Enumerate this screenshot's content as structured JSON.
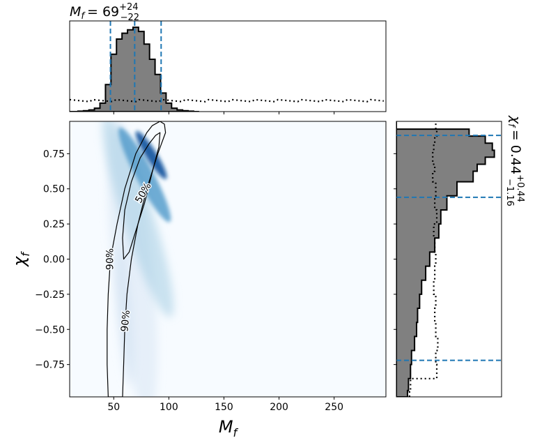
{
  "chart_data": [
    {
      "panel": "top-marginal",
      "type": "area",
      "title": "M_f = 69 (+24, -22)",
      "title_parts": {
        "symbol": "M",
        "sub": "f",
        "median": "= 69",
        "plus": "+24",
        "minus": "−22"
      },
      "x": [
        10,
        15,
        20,
        25,
        30,
        35,
        40,
        45,
        50,
        55,
        60,
        65,
        70,
        75,
        80,
        85,
        90,
        95,
        100,
        105,
        110,
        115,
        120,
        125
      ],
      "posterior": [
        0,
        0,
        0.005,
        0.01,
        0.02,
        0.04,
        0.1,
        0.32,
        0.68,
        0.86,
        0.93,
        0.97,
        1.0,
        0.95,
        0.8,
        0.62,
        0.44,
        0.22,
        0.1,
        0.04,
        0.02,
        0.01,
        0.005,
        0
      ],
      "prior_level": 0.13,
      "dashed_lines": [
        47,
        69,
        93
      ],
      "xlim": [
        10,
        297
      ]
    },
    {
      "panel": "joint",
      "type": "heatmap",
      "xlabel": "M_f",
      "ylabel": "χ_f",
      "xlim": [
        10,
        297
      ],
      "ylim": [
        -0.98,
        0.98
      ],
      "xticks": [
        50,
        100,
        150,
        200,
        250
      ],
      "xtick_labels": [
        "50",
        "100",
        "150",
        "200",
        "250"
      ],
      "yticks": [
        0.75,
        0.5,
        0.25,
        0.0,
        -0.25,
        -0.5,
        -0.75
      ],
      "ytick_labels": [
        "0.75",
        "0.50",
        "0.25",
        "0.00",
        "−0.25",
        "−0.50",
        "−0.75"
      ],
      "contours": [
        {
          "label": "90%",
          "points": [
            [
              85,
              0.95
            ],
            [
              92,
              0.98
            ],
            [
              96,
              0.96
            ],
            [
              97,
              0.9
            ],
            [
              90,
              0.75
            ],
            [
              80,
              0.5
            ],
            [
              72,
              0.25
            ],
            [
              66,
              0.0
            ],
            [
              62,
              -0.25
            ],
            [
              60,
              -0.5
            ],
            [
              59,
              -0.75
            ],
            [
              58,
              -0.98
            ],
            [
              45,
              -0.98
            ],
            [
              44,
              -0.75
            ],
            [
              44,
              -0.5
            ],
            [
              45,
              -0.25
            ],
            [
              47,
              0.0
            ],
            [
              53,
              0.25
            ],
            [
              60,
              0.5
            ],
            [
              70,
              0.75
            ],
            [
              80,
              0.9
            ]
          ]
        },
        {
          "label": "50%",
          "points": [
            [
              88,
              0.88
            ],
            [
              92,
              0.9
            ],
            [
              91,
              0.8
            ],
            [
              85,
              0.62
            ],
            [
              78,
              0.4
            ],
            [
              70,
              0.2
            ],
            [
              64,
              0.05
            ],
            [
              59,
              0.0
            ],
            [
              58,
              0.15
            ],
            [
              60,
              0.35
            ],
            [
              66,
              0.55
            ],
            [
              74,
              0.72
            ],
            [
              82,
              0.82
            ]
          ]
        }
      ],
      "contour_labels": [
        {
          "text": "50%",
          "x": 77,
          "y": 0.47,
          "rotation": -60
        },
        {
          "text": "90%",
          "x": 47,
          "y": 0.0,
          "rotation": -90
        },
        {
          "text": "90%",
          "x": 61,
          "y": -0.44,
          "rotation": -85
        }
      ]
    },
    {
      "panel": "right-marginal",
      "type": "area",
      "title": "χ_f = 0.44 (+0.44, -1.16)",
      "title_parts": {
        "symbol": "χ",
        "sub": "f",
        "median": "= 0.44",
        "plus": "+0.44",
        "minus": "−1.16"
      },
      "y": [
        -0.97,
        -0.9,
        -0.8,
        -0.7,
        -0.6,
        -0.5,
        -0.4,
        -0.3,
        -0.2,
        -0.1,
        0.0,
        0.1,
        0.2,
        0.3,
        0.4,
        0.5,
        0.6,
        0.65,
        0.7,
        0.75,
        0.8,
        0.85,
        0.9,
        0.95
      ],
      "posterior": [
        0.11,
        0.12,
        0.14,
        0.15,
        0.18,
        0.2,
        0.21,
        0.23,
        0.25,
        0.29,
        0.33,
        0.38,
        0.42,
        0.44,
        0.5,
        0.6,
        0.76,
        0.8,
        0.88,
        0.97,
        0.95,
        0.88,
        0.72,
        0.0
      ],
      "prior": [
        0.13,
        0.14,
        0.4,
        0.39,
        0.41,
        0.39,
        0.38,
        0.39,
        0.37,
        0.38,
        0.39,
        0.38,
        0.37,
        0.4,
        0.38,
        0.39,
        0.36,
        0.38,
        0.36,
        0.36,
        0.37,
        0.38,
        0.4,
        0.39
      ],
      "dashed_lines": [
        0.88,
        0.44,
        -0.72
      ],
      "ylim": [
        -0.98,
        0.98
      ]
    }
  ],
  "colors": {
    "hist_fill": "#808080",
    "dashed": "#1f77b4",
    "heat_low": "#f7fbff",
    "heat_high": "#08306b"
  }
}
